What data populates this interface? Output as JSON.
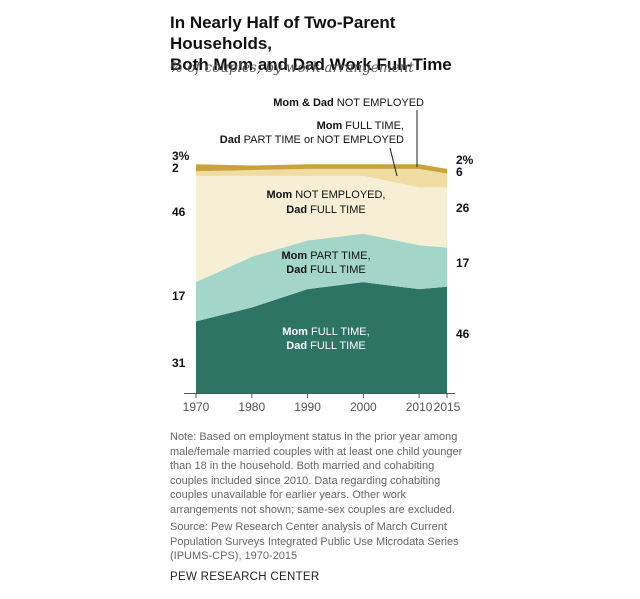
{
  "header": {
    "title_line1": "In Nearly Half of Two-Parent Households,",
    "title_line2": "Both Mom and Dad Work Full-Time",
    "subtitle": "% of couples, by work arrangement"
  },
  "chart_data": {
    "type": "area",
    "stacked": true,
    "x": [
      1970,
      1980,
      1990,
      2000,
      2010,
      2015
    ],
    "ylim": [
      0,
      100
    ],
    "series": [
      {
        "key": "full_full",
        "color": "#2e7465",
        "values": [
          31,
          37,
          45,
          48,
          45,
          46
        ],
        "label_bold": "Mom",
        "label_rest": " FULL TIME,",
        "label_bold2": "Dad",
        "label_rest2": " FULL TIME"
      },
      {
        "key": "part_full",
        "color": "#a3d6c9",
        "values": [
          17,
          22,
          21,
          21,
          19,
          17
        ],
        "label_bold": "Mom",
        "label_rest": " PART TIME,",
        "label_bold2": "Dad",
        "label_rest2": " FULL TIME"
      },
      {
        "key": "notemp_full",
        "color": "#f7eed6",
        "values": [
          46,
          35,
          28,
          25,
          25,
          26
        ],
        "label_bold": "Mom",
        "label_rest": " NOT EMPLOYED,",
        "label_bold2": "Dad",
        "label_rest2": " FULL TIME"
      },
      {
        "key": "full_other",
        "color": "#efdca3",
        "values": [
          2,
          2.5,
          3,
          3,
          8,
          6
        ],
        "label_bold": "Mom",
        "label_rest": " FULL TIME,",
        "label_bold2": "Dad",
        "label_rest2": " PART TIME or NOT EMPLOYED"
      },
      {
        "key": "neither",
        "color": "#c9a23a",
        "values": [
          3,
          2,
          2,
          2,
          2,
          2
        ],
        "label_bold": "Mom & Dad",
        "label_rest": " NOT EMPLOYED"
      }
    ],
    "left_labels": [
      "31",
      "17",
      "46",
      "2",
      "3%"
    ],
    "right_labels": [
      "46",
      "17",
      "26",
      "6",
      "2%"
    ],
    "x_tick_labels": [
      "1970",
      "1980",
      "1990",
      "2000",
      "2010",
      "2015"
    ]
  },
  "note": "Note: Based on employment status in the prior year among male/female married couples with at least one child younger than 18 in the household. Both married and cohabiting couples included since 2010. Data regarding cohabiting couples unavailable for earlier years. Other work arrangements not shown; same-sex couples are excluded.",
  "source": "Source: Pew Research Center analysis of March Current Population Surveys Integrated Public Use Microdata Series (IPUMS-CPS), 1970-2015",
  "org": "PEW RESEARCH CENTER",
  "colors": {
    "axis": "#555555",
    "dark_text": "#111111",
    "light_text": "#ffffff"
  }
}
